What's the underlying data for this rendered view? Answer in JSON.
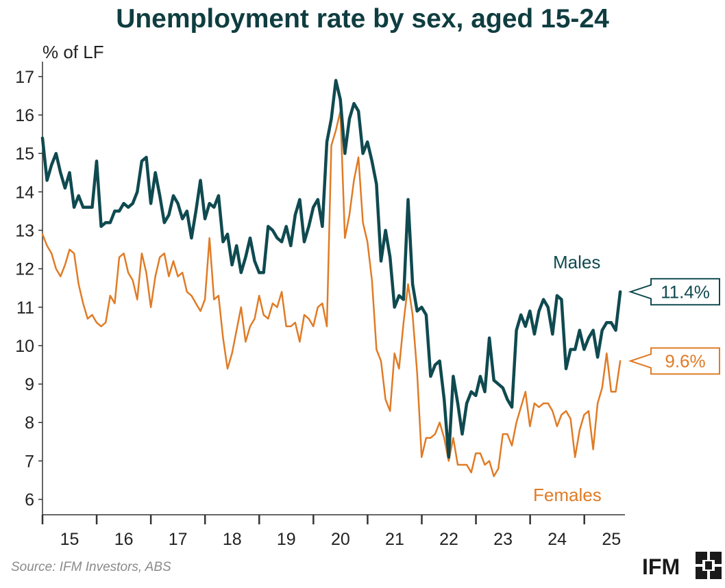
{
  "title": "Unemployment rate by sex, aged 15-24",
  "source": "Source: IFM Investors, ABS",
  "logo": {
    "text": "IFM",
    "icon": "ifm-logo-icon"
  },
  "colors": {
    "males": "#0f4a50",
    "females": "#e07b25",
    "axis": "#333333",
    "title": "#0f3d40"
  },
  "chart_data": {
    "type": "line",
    "title": "Unemployment rate by sex, aged 15-24",
    "ylabel": "% of LF",
    "xlabel": "",
    "ylim": [
      5.6,
      17.3
    ],
    "xlim": [
      2015.0,
      2025.75
    ],
    "yticks": [
      6,
      7,
      8,
      9,
      10,
      11,
      12,
      13,
      14,
      15,
      16,
      17
    ],
    "xticks": [
      {
        "label": "15",
        "pos": 2015.5
      },
      {
        "label": "16",
        "pos": 2016.5
      },
      {
        "label": "17",
        "pos": 2017.5
      },
      {
        "label": "18",
        "pos": 2018.5
      },
      {
        "label": "19",
        "pos": 2019.5
      },
      {
        "label": "20",
        "pos": 2020.5
      },
      {
        "label": "21",
        "pos": 2021.5
      },
      {
        "label": "22",
        "pos": 2022.5
      },
      {
        "label": "23",
        "pos": 2023.5
      },
      {
        "label": "24",
        "pos": 2024.5
      },
      {
        "label": "25",
        "pos": 2025.5
      }
    ],
    "year_boundaries": [
      2015,
      2016,
      2017,
      2018,
      2019,
      2020,
      2021,
      2022,
      2023,
      2024,
      2025
    ],
    "series": [
      {
        "name": "Males",
        "label": "Males",
        "callout": "11.4%",
        "color": "#0f4a50",
        "width": 4.5,
        "x_start": 2015.0,
        "step": 0.0833,
        "values": [
          15.4,
          14.3,
          14.7,
          15.0,
          14.5,
          14.1,
          14.5,
          13.6,
          13.9,
          13.6,
          13.6,
          13.6,
          14.8,
          13.1,
          13.2,
          13.2,
          13.5,
          13.5,
          13.7,
          13.6,
          13.7,
          14.0,
          14.8,
          14.9,
          13.7,
          14.5,
          13.9,
          13.2,
          13.4,
          13.9,
          13.7,
          13.3,
          13.5,
          12.8,
          13.5,
          14.3,
          13.3,
          13.7,
          13.6,
          13.9,
          12.7,
          12.9,
          12.1,
          12.6,
          11.9,
          12.3,
          12.8,
          12.2,
          11.9,
          11.9,
          13.1,
          13.0,
          12.8,
          12.7,
          13.1,
          12.6,
          13.4,
          13.8,
          12.7,
          13.1,
          13.6,
          13.8,
          13.1,
          15.3,
          15.9,
          16.9,
          16.4,
          15.0,
          15.9,
          16.3,
          16.1,
          15.0,
          15.3,
          14.8,
          14.2,
          12.2,
          13.0,
          12.3,
          11.0,
          11.3,
          11.2,
          13.8,
          11.6,
          10.9,
          11.0,
          10.8,
          9.2,
          9.5,
          9.6,
          8.6,
          7.1,
          9.2,
          8.5,
          7.7,
          8.5,
          8.8,
          8.7,
          9.2,
          8.8,
          10.2,
          9.1,
          9.0,
          8.9,
          8.6,
          8.4,
          10.4,
          10.8,
          10.5,
          10.9,
          10.3,
          10.9,
          11.2,
          11.0,
          10.3,
          11.3,
          11.2,
          9.4,
          9.9,
          9.9,
          10.4,
          9.9,
          10.2,
          10.4,
          9.7,
          10.4,
          10.6,
          10.6,
          10.4,
          11.4
        ]
      },
      {
        "name": "Females",
        "label": "Females",
        "callout": "9.6%",
        "color": "#e07b25",
        "width": 2.5,
        "x_start": 2015.0,
        "step": 0.0833,
        "values": [
          12.9,
          12.6,
          12.4,
          12.0,
          11.8,
          12.1,
          12.5,
          12.4,
          11.6,
          11.1,
          10.7,
          10.8,
          10.6,
          10.5,
          10.6,
          11.3,
          11.1,
          12.3,
          12.4,
          11.9,
          11.7,
          11.2,
          12.4,
          11.9,
          11.0,
          11.8,
          12.3,
          12.4,
          11.8,
          12.2,
          11.8,
          11.9,
          11.4,
          11.3,
          11.1,
          10.9,
          11.2,
          12.8,
          11.2,
          11.3,
          10.2,
          9.4,
          9.8,
          10.4,
          11.0,
          10.1,
          10.5,
          10.7,
          11.3,
          10.8,
          10.7,
          11.1,
          11.0,
          11.4,
          10.5,
          10.5,
          10.6,
          10.1,
          10.8,
          10.7,
          10.5,
          11.0,
          11.1,
          10.5,
          15.2,
          15.6,
          16.1,
          12.8,
          13.4,
          14.3,
          14.9,
          13.2,
          12.7,
          11.7,
          9.9,
          9.6,
          8.6,
          8.3,
          9.8,
          9.4,
          10.6,
          11.6,
          10.8,
          9.3,
          7.1,
          7.6,
          7.6,
          7.7,
          8.0,
          7.6,
          7.0,
          7.6,
          6.9,
          6.9,
          6.9,
          6.7,
          7.2,
          7.2,
          6.9,
          7.0,
          6.6,
          6.8,
          7.7,
          7.7,
          7.4,
          8.0,
          8.4,
          8.8,
          7.9,
          8.5,
          8.4,
          8.5,
          8.5,
          8.3,
          7.9,
          8.2,
          8.3,
          8.1,
          7.1,
          7.8,
          8.2,
          8.3,
          7.3,
          8.5,
          8.9,
          9.8,
          8.8,
          8.8,
          9.6
        ]
      }
    ]
  }
}
